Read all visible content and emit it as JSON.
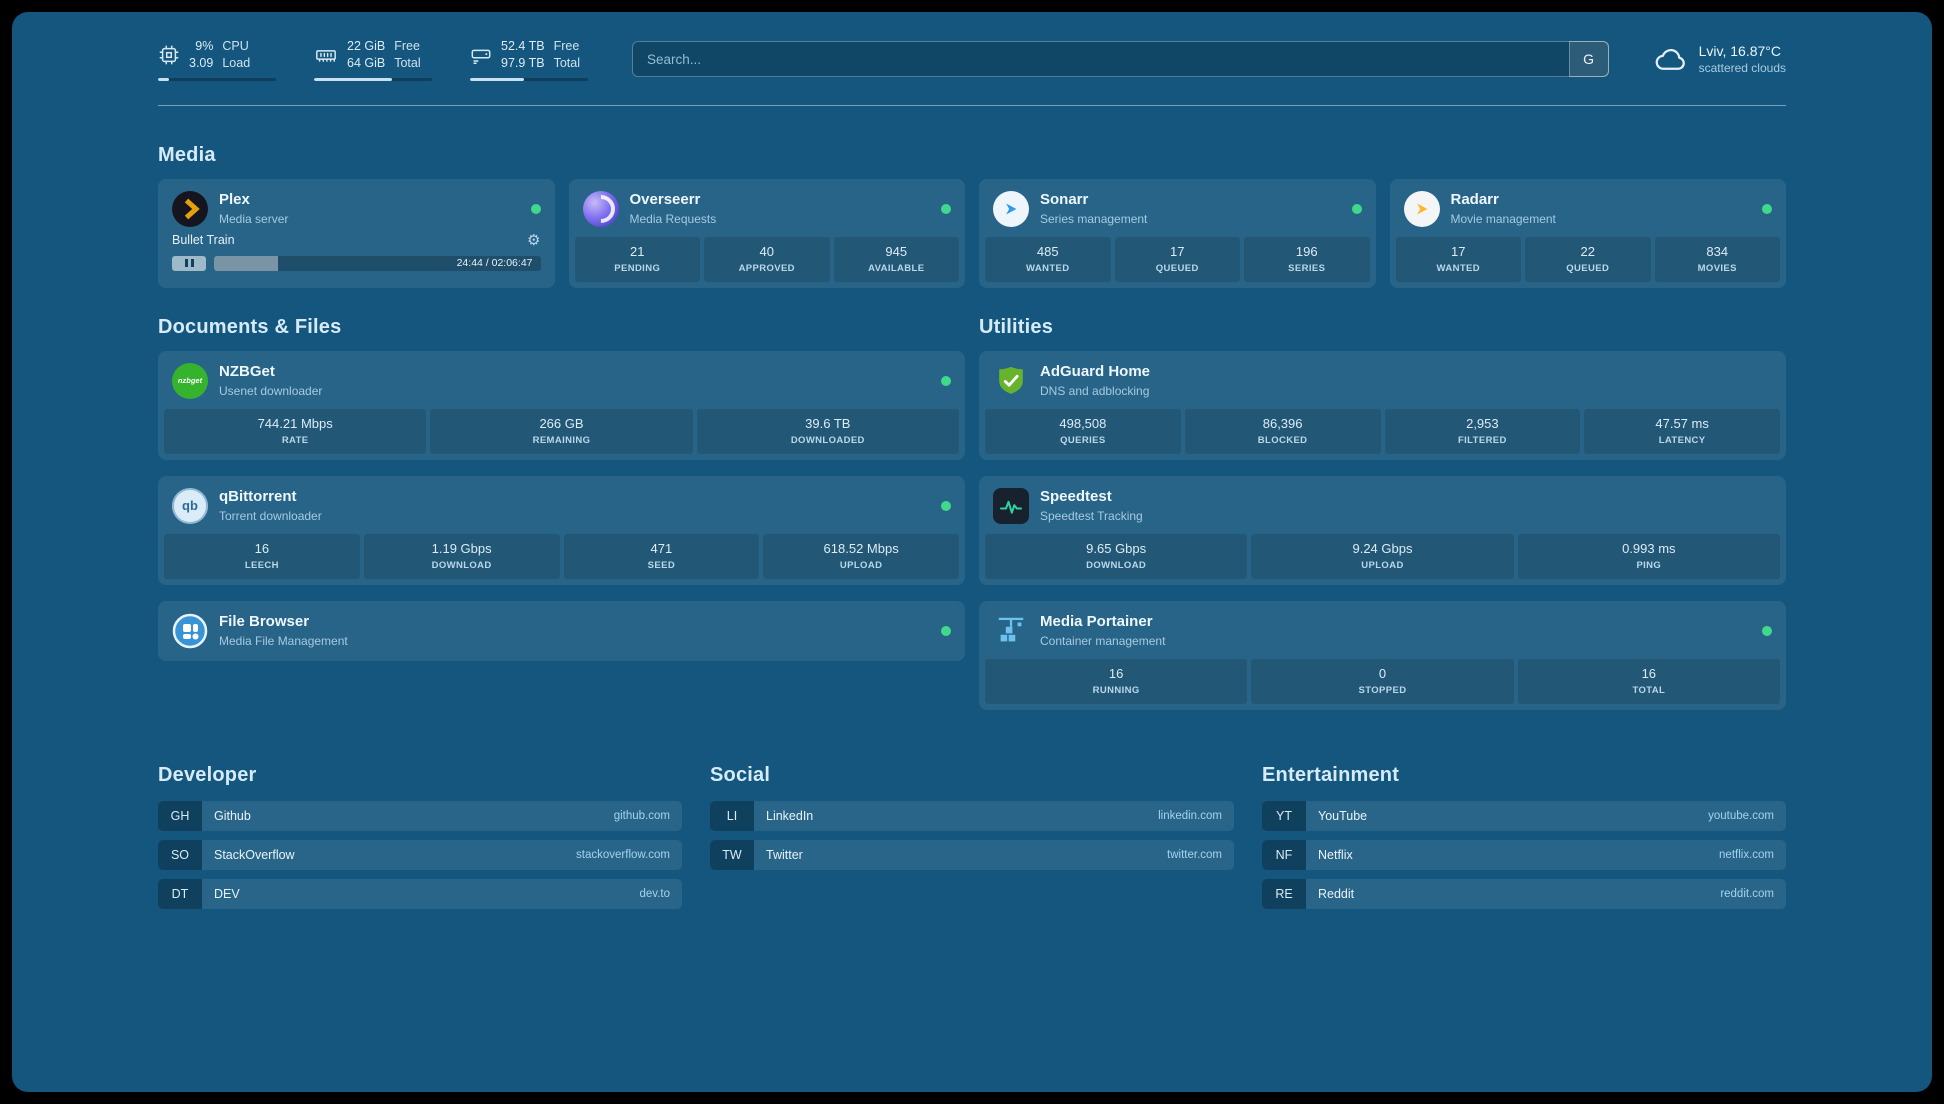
{
  "topbar": {
    "resources": [
      {
        "icon": "cpu-icon",
        "value_top": "9%",
        "value_bottom": "3.09",
        "label_top": "CPU",
        "label_bottom": "Load",
        "progress_percent": 9
      },
      {
        "icon": "memory-icon",
        "value_top": "22 GiB",
        "value_bottom": "64 GiB",
        "label_top": "Free",
        "label_bottom": "Total",
        "progress_percent": 66
      },
      {
        "icon": "disk-icon",
        "value_top": "52.4 TB",
        "value_bottom": "97.9 TB",
        "label_top": "Free",
        "label_bottom": "Total",
        "progress_percent": 46
      }
    ],
    "search": {
      "placeholder": "Search...",
      "button_label": "G"
    },
    "weather": {
      "location": "Lviv, 16.87°C",
      "condition": "scattered clouds"
    }
  },
  "colors": {
    "status_online": "#3fd98c",
    "plex_accent": "#e5a00d",
    "adguard_green": "#67b32e",
    "speedtest_green": "#2dd4a0"
  },
  "sections": {
    "media": {
      "title": "Media",
      "plex": {
        "name": "Plex",
        "description": "Media server",
        "online": true,
        "now_playing": {
          "title": "Bullet Train",
          "time_display": "24:44 / 02:06:47",
          "progress_percent": 19.5
        }
      },
      "overseerr": {
        "name": "Overseerr",
        "description": "Media Requests",
        "online": true,
        "stats": [
          {
            "value": "21",
            "label": "PENDING"
          },
          {
            "value": "40",
            "label": "APPROVED"
          },
          {
            "value": "945",
            "label": "AVAILABLE"
          }
        ]
      },
      "sonarr": {
        "name": "Sonarr",
        "description": "Series management",
        "online": true,
        "stats": [
          {
            "value": "485",
            "label": "WANTED"
          },
          {
            "value": "17",
            "label": "QUEUED"
          },
          {
            "value": "196",
            "label": "SERIES"
          }
        ]
      },
      "radarr": {
        "name": "Radarr",
        "description": "Movie management",
        "online": true,
        "stats": [
          {
            "value": "17",
            "label": "WANTED"
          },
          {
            "value": "22",
            "label": "QUEUED"
          },
          {
            "value": "834",
            "label": "MOVIES"
          }
        ]
      }
    },
    "documents": {
      "title": "Documents & Files",
      "nzbget": {
        "name": "NZBGet",
        "description": "Usenet downloader",
        "icon_text": "nzbget",
        "online": true,
        "stats": [
          {
            "value": "744.21 Mbps",
            "label": "RATE"
          },
          {
            "value": "266 GB",
            "label": "REMAINING"
          },
          {
            "value": "39.6 TB",
            "label": "DOWNLOADED"
          }
        ]
      },
      "qbittorrent": {
        "name": "qBittorrent",
        "description": "Torrent downloader",
        "icon_text": "qb",
        "online": true,
        "stats": [
          {
            "value": "16",
            "label": "LEECH"
          },
          {
            "value": "1.19 Gbps",
            "label": "DOWNLOAD"
          },
          {
            "value": "471",
            "label": "SEED"
          },
          {
            "value": "618.52 Mbps",
            "label": "UPLOAD"
          }
        ]
      },
      "filebrowser": {
        "name": "File Browser",
        "description": "Media File Management",
        "online": true
      }
    },
    "utilities": {
      "title": "Utilities",
      "adguard": {
        "name": "AdGuard Home",
        "description": "DNS and adblocking",
        "stats": [
          {
            "value": "498,508",
            "label": "QUERIES"
          },
          {
            "value": "86,396",
            "label": "BLOCKED"
          },
          {
            "value": "2,953",
            "label": "FILTERED"
          },
          {
            "value": "47.57 ms",
            "label": "LATENCY"
          }
        ]
      },
      "speedtest": {
        "name": "Speedtest",
        "description": "Speedtest Tracking",
        "stats": [
          {
            "value": "9.65 Gbps",
            "label": "DOWNLOAD"
          },
          {
            "value": "9.24 Gbps",
            "label": "UPLOAD"
          },
          {
            "value": "0.993 ms",
            "label": "PING"
          }
        ]
      },
      "portainer": {
        "name": "Media Portainer",
        "description": "Container management",
        "online": true,
        "stats": [
          {
            "value": "16",
            "label": "RUNNING"
          },
          {
            "value": "0",
            "label": "STOPPED"
          },
          {
            "value": "16",
            "label": "TOTAL"
          }
        ]
      }
    }
  },
  "bookmarks": {
    "developer": {
      "title": "Developer",
      "items": [
        {
          "abbr": "GH",
          "name": "Github",
          "url": "github.com"
        },
        {
          "abbr": "SO",
          "name": "StackOverflow",
          "url": "stackoverflow.com"
        },
        {
          "abbr": "DT",
          "name": "DEV",
          "url": "dev.to"
        }
      ]
    },
    "social": {
      "title": "Social",
      "items": [
        {
          "abbr": "LI",
          "name": "LinkedIn",
          "url": "linkedin.com"
        },
        {
          "abbr": "TW",
          "name": "Twitter",
          "url": "twitter.com"
        }
      ]
    },
    "entertainment": {
      "title": "Entertainment",
      "items": [
        {
          "abbr": "YT",
          "name": "YouTube",
          "url": "youtube.com"
        },
        {
          "abbr": "NF",
          "name": "Netflix",
          "url": "netflix.com"
        },
        {
          "abbr": "RE",
          "name": "Reddit",
          "url": "reddit.com"
        }
      ]
    }
  }
}
